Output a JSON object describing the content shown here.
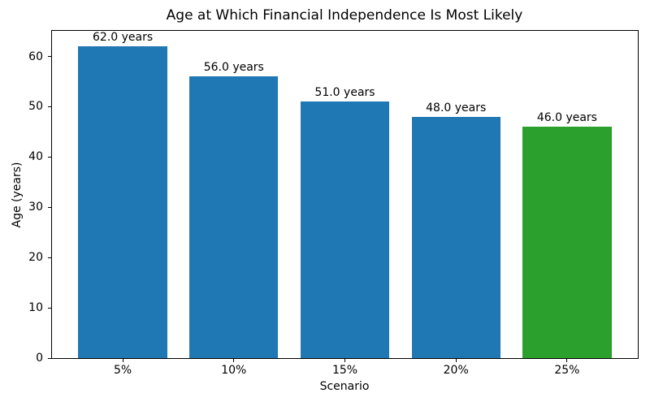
{
  "chart_data": {
    "type": "bar",
    "title": "Age at Which Financial Independence Is Most Likely",
    "xlabel": "Scenario",
    "ylabel": "Age (years)",
    "categories": [
      "5%",
      "10%",
      "15%",
      "20%",
      "25%"
    ],
    "values": [
      62.0,
      56.0,
      51.0,
      48.0,
      46.0
    ],
    "bar_labels": [
      "62.0 years",
      "56.0 years",
      "51.0 years",
      "48.0 years",
      "46.0 years"
    ],
    "bar_colors": [
      "#1f77b4",
      "#1f77b4",
      "#1f77b4",
      "#1f77b4",
      "#2ca02c"
    ],
    "yticks": [
      0,
      10,
      20,
      30,
      40,
      50,
      60
    ],
    "ylim": [
      0,
      65.1
    ],
    "grid": false,
    "legend_position": "none",
    "colors": {
      "bar_blue": "#1f77b4",
      "bar_green": "#2ca02c",
      "axis": "#000000",
      "background": "#ffffff"
    }
  }
}
